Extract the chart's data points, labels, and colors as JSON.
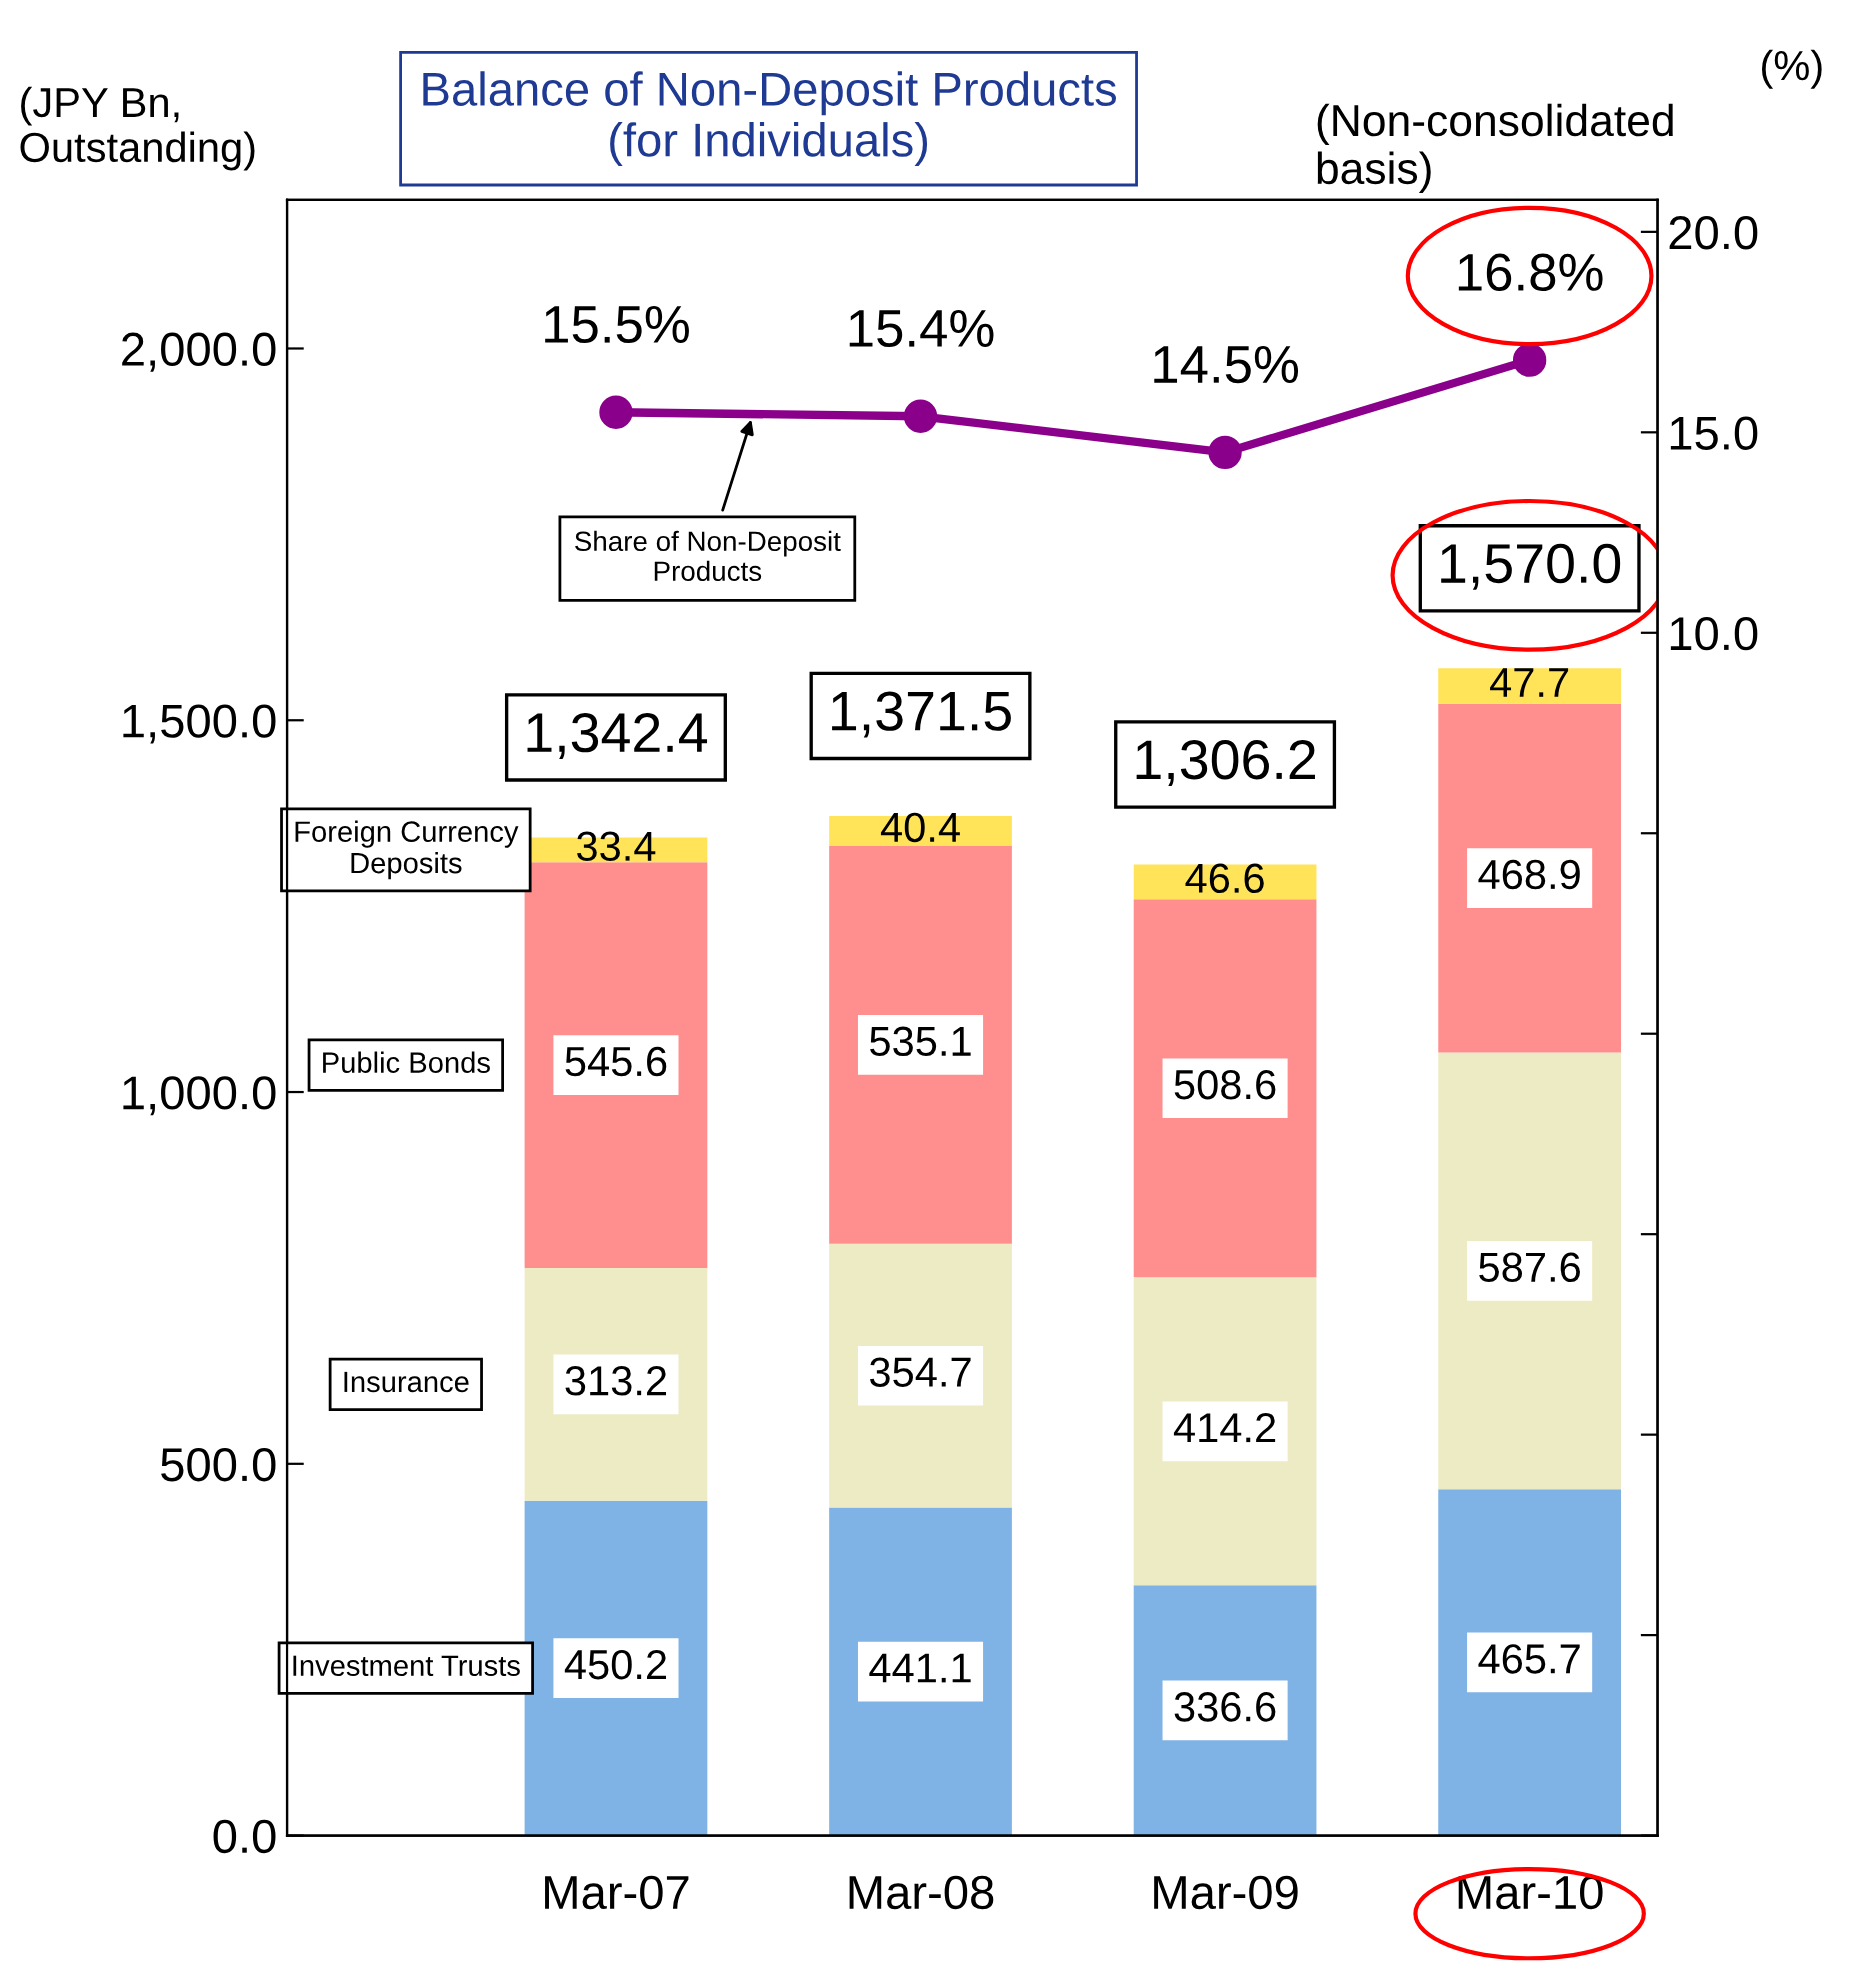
{
  "chart_data": {
    "type": "bar",
    "title": "Balance of Non-Deposit Products\n(for Individuals)",
    "categories": [
      "Mar-07",
      "Mar-08",
      "Mar-09",
      "Mar-10"
    ],
    "stacked": true,
    "data_labels": true,
    "series": [
      {
        "name": "Investment Trusts",
        "color": "#7fb2e5",
        "values": [
          450.2,
          441.1,
          336.6,
          465.7
        ]
      },
      {
        "name": "Insurance",
        "color": "#ecebc4",
        "values": [
          313.2,
          354.7,
          414.2,
          587.6
        ]
      },
      {
        "name": "Public Bonds",
        "color": "#ff8f8f",
        "values": [
          545.6,
          535.1,
          508.6,
          468.9
        ]
      },
      {
        "name": "Foreign Currency Deposits",
        "color": "#ffe45a",
        "values": [
          33.4,
          40.4,
          46.6,
          47.7
        ]
      },
      {
        "name": "Share of Non-Deposit Products",
        "type": "line",
        "axis": "y2",
        "color": "#8b008b",
        "marker": "circle",
        "values": [
          15.5,
          15.4,
          14.5,
          16.8
        ],
        "value_labels": [
          "15.5%",
          "15.4%",
          "14.5%",
          "16.8%"
        ]
      }
    ],
    "totals": [
      "1,342.4",
      "1,371.5",
      "1,306.2",
      "1,570.0"
    ],
    "ylim": [
      0,
      2200
    ],
    "yticks": [
      {
        "value": 0,
        "label": "0.0"
      },
      {
        "value": 500,
        "label": "500.0"
      },
      {
        "value": 1000,
        "label": "1,000.0"
      },
      {
        "value": 1500,
        "label": "1,500.0"
      },
      {
        "value": 2000,
        "label": "2,000.0"
      }
    ],
    "y2lim": [
      -20,
      20.8
    ],
    "y2ticks": [
      {
        "value": -20,
        "label": null
      },
      {
        "value": -15,
        "label": null
      },
      {
        "value": -10,
        "label": null
      },
      {
        "value": -5,
        "label": null
      },
      {
        "value": 0,
        "label": null
      },
      {
        "value": 5,
        "label": null
      },
      {
        "value": 10,
        "label": "10.0"
      },
      {
        "value": 15,
        "label": "15.0"
      },
      {
        "value": 20,
        "label": "20.0"
      }
    ],
    "annotations": [
      "(JPY Bn,\nOutstanding)",
      "(%)",
      "(Non-consolidated\nbasis)"
    ]
  }
}
